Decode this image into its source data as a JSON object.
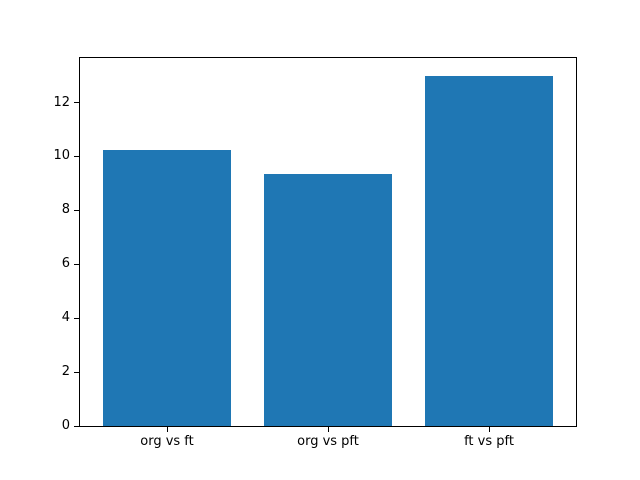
{
  "figure": {
    "background": "#ffffff",
    "frame_color": "#000000",
    "tick_color": "#000000",
    "tick_label_color": "#000000"
  },
  "chart_data": {
    "type": "bar",
    "categories": [
      "org vs ft",
      "org vs pft",
      "ft vs pft"
    ],
    "values": [
      10.25,
      9.35,
      13.0
    ],
    "bar_color": "#1f77b4",
    "bar_width_fraction": 0.8,
    "xlim": [
      -0.54,
      2.54
    ],
    "ylim": [
      0,
      13.65
    ],
    "yticks": [
      0,
      2,
      4,
      6,
      8,
      10,
      12
    ],
    "y_tick_labels": [
      "0",
      "2",
      "4",
      "6",
      "8",
      "10",
      "12"
    ],
    "grid": false,
    "legend": null,
    "title": "",
    "xlabel": "",
    "ylabel": ""
  }
}
